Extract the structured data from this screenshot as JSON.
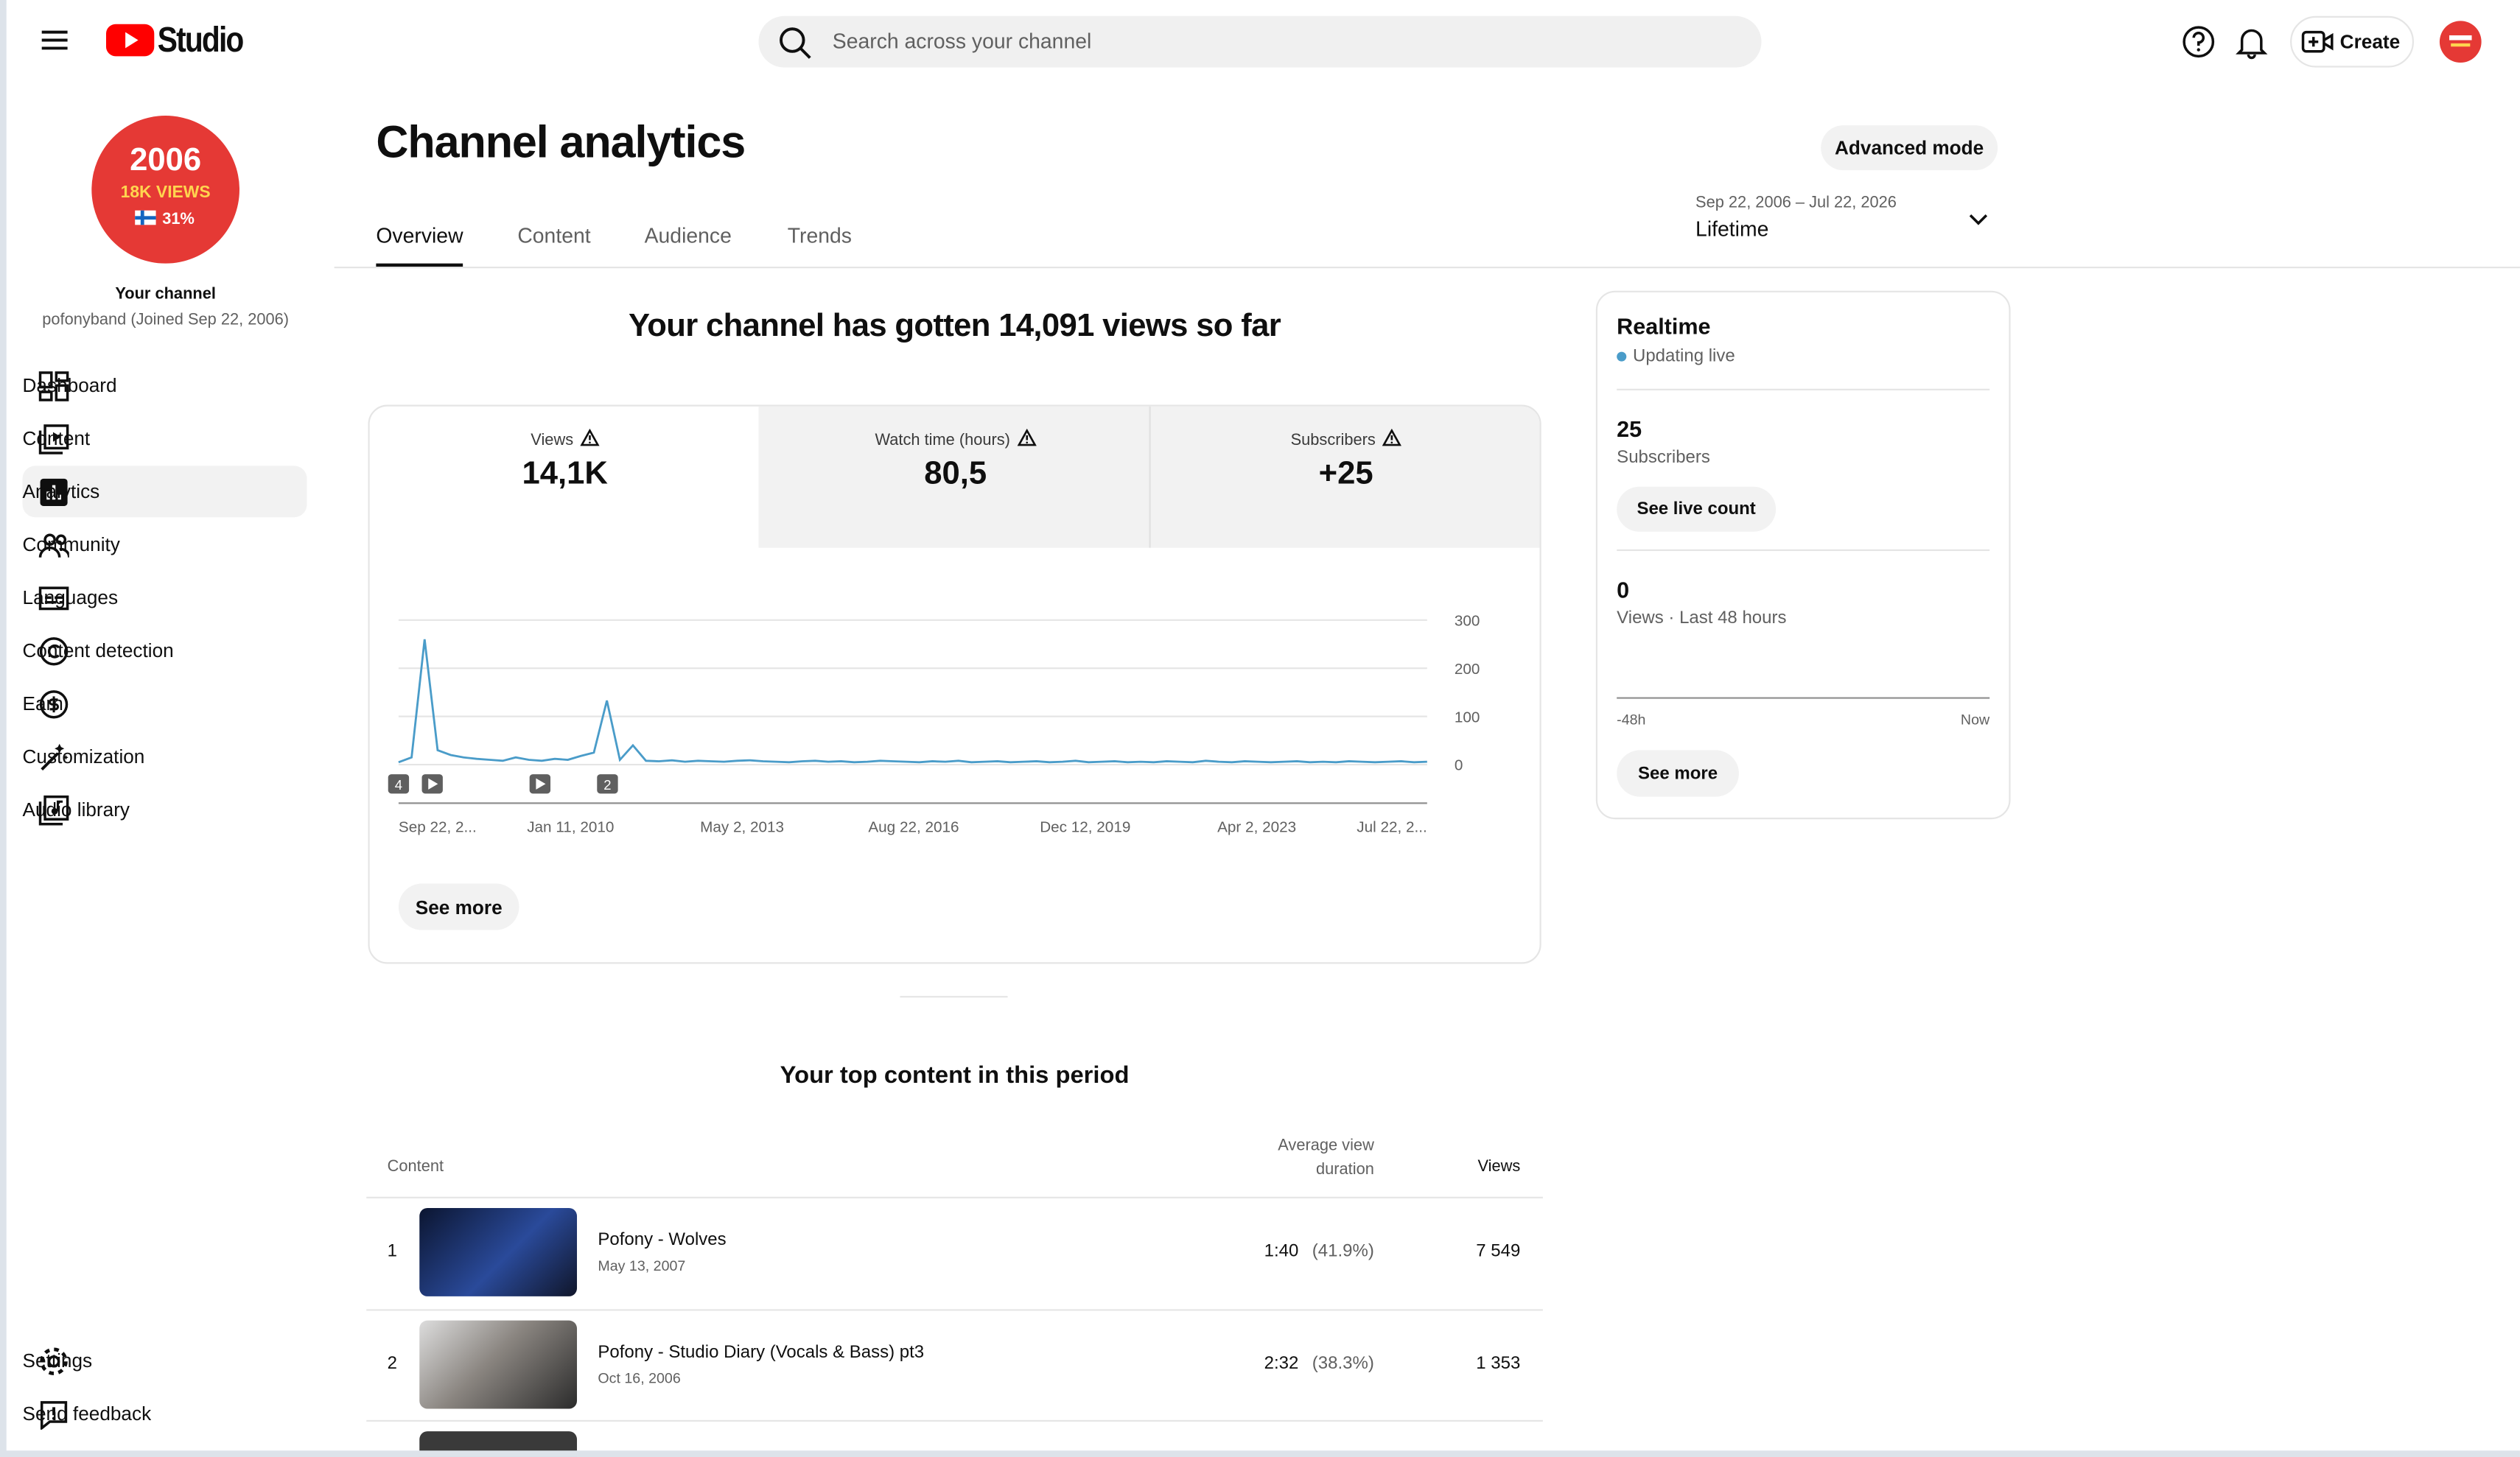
{
  "header": {
    "logo": "Studio",
    "search_placeholder": "Search across your channel",
    "create": "Create"
  },
  "sidebar": {
    "avatar": {
      "year": "2006",
      "views": "18K VIEWS",
      "percent": "31%"
    },
    "channel_label": "Your channel",
    "channel_sub": "pofonyband (Joined Sep 22, 2006)",
    "nav": [
      "Dashboard",
      "Content",
      "Analytics",
      "Community",
      "Languages",
      "Content detection",
      "Earn",
      "Customization",
      "Audio library"
    ],
    "footer_nav": [
      "Settings",
      "Send feedback"
    ]
  },
  "page": {
    "title": "Channel analytics",
    "advanced": "Advanced mode",
    "tabs": [
      "Overview",
      "Content",
      "Audience",
      "Trends"
    ],
    "date_range": "Sep 22, 2006 – Jul 22, 2026",
    "period": "Lifetime"
  },
  "summary": {
    "headline": "Your channel has gotten 14,091 views so far",
    "metrics": [
      {
        "label": "Views",
        "value": "14,1K"
      },
      {
        "label": "Watch time (hours)",
        "value": "80,5"
      },
      {
        "label": "Subscribers",
        "value": "+25"
      }
    ],
    "see_more": "See more"
  },
  "chart_data": {
    "type": "line",
    "color": "#4a9cc9",
    "values": [
      5,
      15,
      260,
      30,
      20,
      15,
      12,
      10,
      8,
      15,
      10,
      8,
      12,
      10,
      18,
      25,
      133,
      10,
      40,
      8,
      7,
      9,
      6,
      8,
      7,
      6,
      8,
      9,
      7,
      6,
      5,
      7,
      8,
      6,
      7,
      5,
      6,
      8,
      7,
      6,
      5,
      7,
      6,
      8,
      5,
      6,
      7,
      5,
      6,
      7,
      5,
      6,
      8,
      5,
      6,
      7,
      5,
      6,
      5,
      7,
      6,
      5,
      8,
      6,
      5,
      7,
      6,
      5,
      6,
      7,
      5,
      6,
      5,
      7,
      6,
      5,
      6,
      7,
      5,
      6
    ],
    "ylim": [
      0,
      300
    ],
    "yticks": [
      0,
      100,
      200,
      300
    ],
    "grid": true,
    "x_tick_labels": [
      "Sep 22, 2...",
      "Jan 11, 2010",
      "May 2, 2013",
      "Aug 22, 2016",
      "Dec 12, 2019",
      "Apr 2, 2023",
      "Jul 22, 2..."
    ],
    "markers": [
      "4",
      "2"
    ]
  },
  "realtime": {
    "title": "Realtime",
    "status": "Updating live",
    "subscribers": 25,
    "subscribers_label": "Subscribers",
    "live_count": "See live count",
    "views": 0,
    "views_label": "Views · Last 48 hours",
    "axis_start": "-48h",
    "axis_end": "Now",
    "see_more": "See more"
  },
  "top_content": {
    "title": "Your top content in this period",
    "headers": {
      "content": "Content",
      "avg": "Average view duration",
      "views": "Views"
    },
    "rows": [
      {
        "rank": 1,
        "title": "Pofony - Wolves",
        "date": "May 13, 2007",
        "avg": "1:40",
        "pct": "(41.9%)",
        "views": "7 549"
      },
      {
        "rank": 2,
        "title": "Pofony - Studio Diary (Vocals & Bass) pt3",
        "date": "Oct 16, 2006",
        "avg": "2:32",
        "pct": "(38.3%)",
        "views": "1 353"
      }
    ]
  }
}
